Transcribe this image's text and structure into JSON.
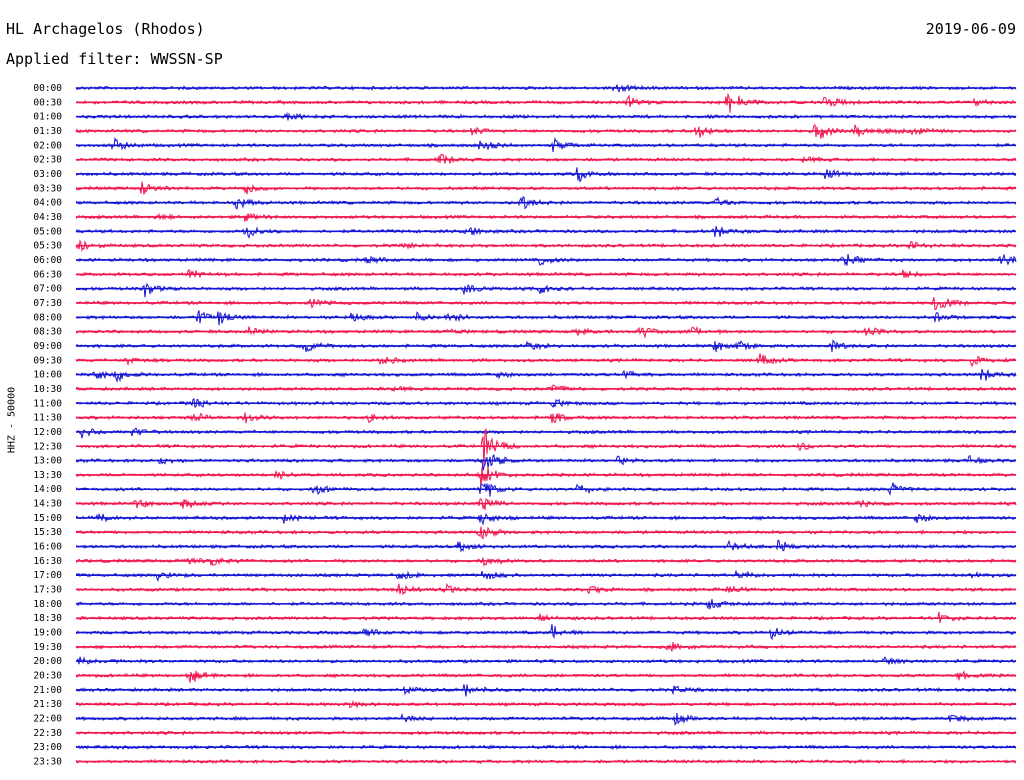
{
  "header": {
    "station": "HL Archagelos (Rhodos)",
    "filter": "Applied filter: WWSSN-SP",
    "date": "2019-06-09"
  },
  "colors": {
    "even": "#1414d2",
    "odd": "#f0154c"
  },
  "chart_data": {
    "type": "line",
    "title": "HL Archagelos (Rhodos)",
    "subtitle": "Applied filter: WWSSN-SP",
    "ylabel": "HHZ - 50000",
    "xlabel": "",
    "grid": false,
    "trace_interval_minutes": 30,
    "row_labels": [
      "00:00",
      "00:30",
      "01:00",
      "01:30",
      "02:00",
      "02:30",
      "03:00",
      "03:30",
      "04:00",
      "04:30",
      "05:00",
      "05:30",
      "06:00",
      "06:30",
      "07:00",
      "07:30",
      "08:00",
      "08:30",
      "09:00",
      "09:30",
      "10:00",
      "10:30",
      "11:00",
      "11:30",
      "12:00",
      "12:30",
      "13:00",
      "13:30",
      "14:00",
      "14:30",
      "15:00",
      "15:30",
      "16:00",
      "16:30",
      "17:00",
      "17:30",
      "18:00",
      "18:30",
      "19:00",
      "19:30",
      "20:00",
      "20:30",
      "21:00",
      "21:30",
      "22:00",
      "22:30",
      "23:00",
      "23:30"
    ],
    "events": [
      {
        "row": 0,
        "minute": 17.2,
        "amp": 0.9
      },
      {
        "row": 1,
        "minute": 17.6,
        "amp": 1.1
      },
      {
        "row": 1,
        "minute": 20.8,
        "amp": 3.0
      },
      {
        "row": 1,
        "minute": 23.9,
        "amp": 1.5
      },
      {
        "row": 1,
        "minute": 28.6,
        "amp": 0.6
      },
      {
        "row": 2,
        "minute": 6.7,
        "amp": 0.8
      },
      {
        "row": 3,
        "minute": 12.6,
        "amp": 0.6
      },
      {
        "row": 3,
        "minute": 19.8,
        "amp": 1.4
      },
      {
        "row": 3,
        "minute": 23.6,
        "amp": 2.0
      },
      {
        "row": 3,
        "minute": 24.8,
        "amp": 1.2
      },
      {
        "row": 3,
        "minute": 25.8,
        "amp": 0.7
      },
      {
        "row": 3,
        "minute": 26.7,
        "amp": 0.7
      },
      {
        "row": 4,
        "minute": 1.2,
        "amp": 1.3
      },
      {
        "row": 4,
        "minute": 12.9,
        "amp": 1.0
      },
      {
        "row": 4,
        "minute": 15.2,
        "amp": 1.2
      },
      {
        "row": 5,
        "minute": 11.6,
        "amp": 1.0
      },
      {
        "row": 5,
        "minute": 23.2,
        "amp": 0.5
      },
      {
        "row": 6,
        "minute": 16.0,
        "amp": 1.4
      },
      {
        "row": 6,
        "minute": 23.9,
        "amp": 1.1
      },
      {
        "row": 7,
        "minute": 2.1,
        "amp": 1.3
      },
      {
        "row": 7,
        "minute": 5.4,
        "amp": 1.1
      },
      {
        "row": 8,
        "minute": 5.1,
        "amp": 1.2
      },
      {
        "row": 8,
        "minute": 14.2,
        "amp": 1.3
      },
      {
        "row": 8,
        "minute": 20.4,
        "amp": 0.8
      },
      {
        "row": 9,
        "minute": 2.6,
        "amp": 0.5
      },
      {
        "row": 9,
        "minute": 5.4,
        "amp": 0.8
      },
      {
        "row": 10,
        "minute": 5.4,
        "amp": 1.4
      },
      {
        "row": 10,
        "minute": 12.4,
        "amp": 1.2
      },
      {
        "row": 10,
        "minute": 20.4,
        "amp": 1.0
      },
      {
        "row": 11,
        "minute": 0.1,
        "amp": 1.2
      },
      {
        "row": 11,
        "minute": 10.4,
        "amp": 0.5
      },
      {
        "row": 11,
        "minute": 26.6,
        "amp": 0.8
      },
      {
        "row": 12,
        "minute": 9.3,
        "amp": 1.0
      },
      {
        "row": 12,
        "minute": 14.8,
        "amp": 0.9
      },
      {
        "row": 12,
        "minute": 24.5,
        "amp": 1.3
      },
      {
        "row": 12,
        "minute": 29.5,
        "amp": 1.4
      },
      {
        "row": 13,
        "minute": 3.6,
        "amp": 0.9
      },
      {
        "row": 13,
        "minute": 26.4,
        "amp": 0.7
      },
      {
        "row": 14,
        "minute": 2.2,
        "amp": 1.3
      },
      {
        "row": 14,
        "minute": 12.4,
        "amp": 1.1
      },
      {
        "row": 14,
        "minute": 14.8,
        "amp": 1.0
      },
      {
        "row": 15,
        "minute": 7.5,
        "amp": 0.7
      },
      {
        "row": 15,
        "minute": 27.4,
        "amp": 2.0
      },
      {
        "row": 16,
        "minute": 3.9,
        "amp": 1.1
      },
      {
        "row": 16,
        "minute": 4.5,
        "amp": 1.3
      },
      {
        "row": 16,
        "minute": 8.8,
        "amp": 0.8
      },
      {
        "row": 16,
        "minute": 10.9,
        "amp": 0.7
      },
      {
        "row": 16,
        "minute": 11.9,
        "amp": 1.1
      },
      {
        "row": 16,
        "minute": 27.4,
        "amp": 0.8
      },
      {
        "row": 17,
        "minute": 5.5,
        "amp": 0.8
      },
      {
        "row": 17,
        "minute": 11.9,
        "amp": 0.6
      },
      {
        "row": 17,
        "minute": 16.0,
        "amp": 0.7
      },
      {
        "row": 17,
        "minute": 18.0,
        "amp": 1.1
      },
      {
        "row": 17,
        "minute": 19.6,
        "amp": 0.9
      },
      {
        "row": 17,
        "minute": 25.2,
        "amp": 0.9
      },
      {
        "row": 18,
        "minute": 7.3,
        "amp": 1.2
      },
      {
        "row": 18,
        "minute": 14.4,
        "amp": 0.9
      },
      {
        "row": 18,
        "minute": 20.4,
        "amp": 1.0
      },
      {
        "row": 18,
        "minute": 21.1,
        "amp": 1.0
      },
      {
        "row": 18,
        "minute": 24.1,
        "amp": 0.9
      },
      {
        "row": 19,
        "minute": 1.6,
        "amp": 0.6
      },
      {
        "row": 19,
        "minute": 9.7,
        "amp": 0.9
      },
      {
        "row": 19,
        "minute": 21.8,
        "amp": 1.1
      },
      {
        "row": 19,
        "minute": 28.6,
        "amp": 0.9
      },
      {
        "row": 20,
        "minute": 0.6,
        "amp": 1.1
      },
      {
        "row": 20,
        "minute": 1.3,
        "amp": 1.0
      },
      {
        "row": 20,
        "minute": 13.4,
        "amp": 0.6
      },
      {
        "row": 20,
        "minute": 17.5,
        "amp": 0.8
      },
      {
        "row": 20,
        "minute": 28.9,
        "amp": 1.1
      },
      {
        "row": 21,
        "minute": 10.0,
        "amp": 0.6
      },
      {
        "row": 21,
        "minute": 15.2,
        "amp": 0.8
      },
      {
        "row": 22,
        "minute": 3.7,
        "amp": 1.0
      },
      {
        "row": 22,
        "minute": 15.2,
        "amp": 0.9
      },
      {
        "row": 23,
        "minute": 3.7,
        "amp": 1.0
      },
      {
        "row": 23,
        "minute": 5.4,
        "amp": 1.1
      },
      {
        "row": 23,
        "minute": 9.3,
        "amp": 0.8
      },
      {
        "row": 23,
        "minute": 15.2,
        "amp": 1.1
      },
      {
        "row": 24,
        "minute": 0.2,
        "amp": 0.9
      },
      {
        "row": 24,
        "minute": 1.8,
        "amp": 0.8
      },
      {
        "row": 25,
        "minute": 13.0,
        "amp": 3.6
      },
      {
        "row": 25,
        "minute": 23.1,
        "amp": 0.8
      },
      {
        "row": 26,
        "minute": 2.7,
        "amp": 0.6
      },
      {
        "row": 26,
        "minute": 13.0,
        "amp": 3.2
      },
      {
        "row": 26,
        "minute": 17.3,
        "amp": 0.7
      },
      {
        "row": 26,
        "minute": 28.5,
        "amp": 0.6
      },
      {
        "row": 27,
        "minute": 6.4,
        "amp": 0.8
      },
      {
        "row": 27,
        "minute": 12.9,
        "amp": 3.0
      },
      {
        "row": 28,
        "minute": 7.6,
        "amp": 0.9
      },
      {
        "row": 28,
        "minute": 12.9,
        "amp": 2.4
      },
      {
        "row": 28,
        "minute": 16.0,
        "amp": 0.9
      },
      {
        "row": 28,
        "minute": 26.0,
        "amp": 1.1
      },
      {
        "row": 29,
        "minute": 1.9,
        "amp": 0.9
      },
      {
        "row": 29,
        "minute": 3.4,
        "amp": 0.8
      },
      {
        "row": 29,
        "minute": 12.9,
        "amp": 2.0
      },
      {
        "row": 29,
        "minute": 25.0,
        "amp": 0.7
      },
      {
        "row": 30,
        "minute": 0.7,
        "amp": 0.8
      },
      {
        "row": 30,
        "minute": 6.6,
        "amp": 0.8
      },
      {
        "row": 30,
        "minute": 12.9,
        "amp": 1.4
      },
      {
        "row": 30,
        "minute": 26.8,
        "amp": 1.0
      },
      {
        "row": 31,
        "minute": 12.9,
        "amp": 1.6
      },
      {
        "row": 32,
        "minute": 12.2,
        "amp": 0.9
      },
      {
        "row": 32,
        "minute": 20.8,
        "amp": 1.0
      },
      {
        "row": 32,
        "minute": 22.4,
        "amp": 1.1
      },
      {
        "row": 33,
        "minute": 3.5,
        "amp": 0.8
      },
      {
        "row": 33,
        "minute": 4.3,
        "amp": 0.8
      },
      {
        "row": 33,
        "minute": 13.0,
        "amp": 1.0
      },
      {
        "row": 34,
        "minute": 2.6,
        "amp": 1.0
      },
      {
        "row": 34,
        "minute": 10.3,
        "amp": 0.9
      },
      {
        "row": 34,
        "minute": 13.0,
        "amp": 1.2
      },
      {
        "row": 34,
        "minute": 21.1,
        "amp": 1.0
      },
      {
        "row": 34,
        "minute": 28.6,
        "amp": 0.7
      },
      {
        "row": 35,
        "minute": 10.3,
        "amp": 1.1
      },
      {
        "row": 35,
        "minute": 11.8,
        "amp": 0.8
      },
      {
        "row": 35,
        "minute": 16.4,
        "amp": 0.8
      },
      {
        "row": 35,
        "minute": 20.8,
        "amp": 0.7
      },
      {
        "row": 36,
        "minute": 20.2,
        "amp": 1.1
      },
      {
        "row": 37,
        "minute": 14.8,
        "amp": 0.7
      },
      {
        "row": 37,
        "minute": 27.5,
        "amp": 1.1
      },
      {
        "row": 38,
        "minute": 9.2,
        "amp": 1.0
      },
      {
        "row": 38,
        "minute": 15.2,
        "amp": 1.3
      },
      {
        "row": 38,
        "minute": 22.2,
        "amp": 1.0
      },
      {
        "row": 39,
        "minute": 18.9,
        "amp": 1.0
      },
      {
        "row": 40,
        "minute": 0.1,
        "amp": 0.7
      },
      {
        "row": 40,
        "minute": 25.8,
        "amp": 0.6
      },
      {
        "row": 41,
        "minute": 3.6,
        "amp": 1.6
      },
      {
        "row": 41,
        "minute": 28.1,
        "amp": 0.9
      },
      {
        "row": 42,
        "minute": 10.4,
        "amp": 0.8
      },
      {
        "row": 42,
        "minute": 12.4,
        "amp": 1.4
      },
      {
        "row": 42,
        "minute": 19.0,
        "amp": 0.8
      },
      {
        "row": 43,
        "minute": 8.7,
        "amp": 0.5
      },
      {
        "row": 44,
        "minute": 10.4,
        "amp": 0.6
      },
      {
        "row": 44,
        "minute": 19.1,
        "amp": 1.1
      },
      {
        "row": 44,
        "minute": 27.9,
        "amp": 0.7
      }
    ]
  }
}
